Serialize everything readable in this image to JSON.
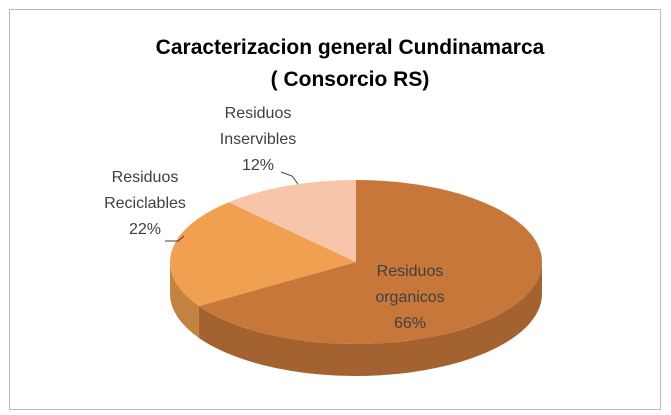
{
  "chart_data": {
    "type": "pie",
    "title": "Caracterizacion general Cundinamarca\n( Consorcio RS)",
    "categories": [
      "Residuos organicos",
      "Residuos Reciclables",
      "Residuos Inservibles"
    ],
    "values": [
      66,
      22,
      12
    ],
    "value_labels": [
      "66%",
      "22%",
      "12%"
    ],
    "colors": [
      "#c8773a",
      "#f0a050",
      "#f6c5aa"
    ]
  }
}
